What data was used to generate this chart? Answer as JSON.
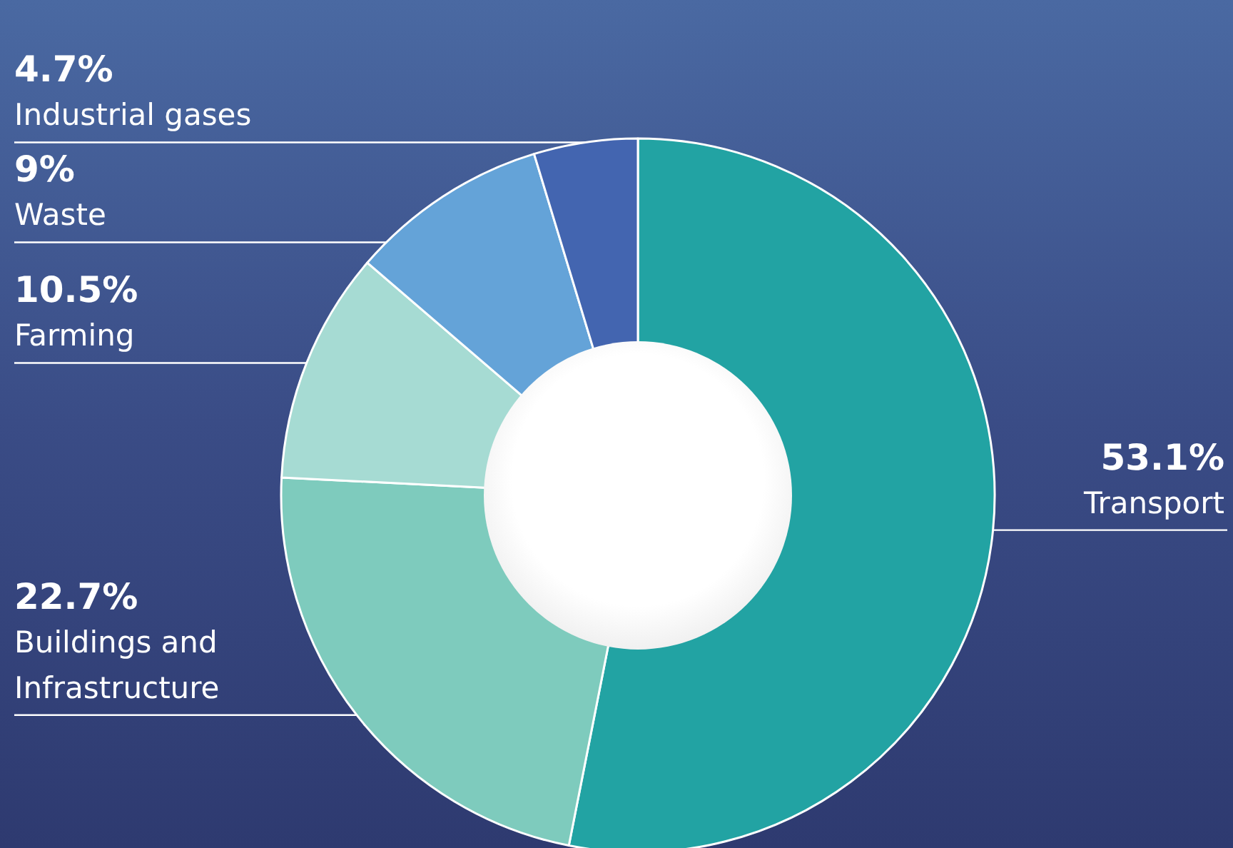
{
  "chart_data": {
    "type": "donut",
    "categories": [
      "Transport",
      "Buildings and Infrastructure",
      "Farming",
      "Waste",
      "Industrial gases"
    ],
    "values": [
      53.1,
      22.7,
      10.5,
      9,
      4.7
    ],
    "value_labels": [
      "53.1%",
      "22.7%",
      "10.5%",
      "9%",
      "4.7%"
    ],
    "colors": [
      "#22a3a3",
      "#7ecbbd",
      "#a6dbd3",
      "#64a3d8",
      "#4365b0"
    ],
    "legend": false
  }
}
